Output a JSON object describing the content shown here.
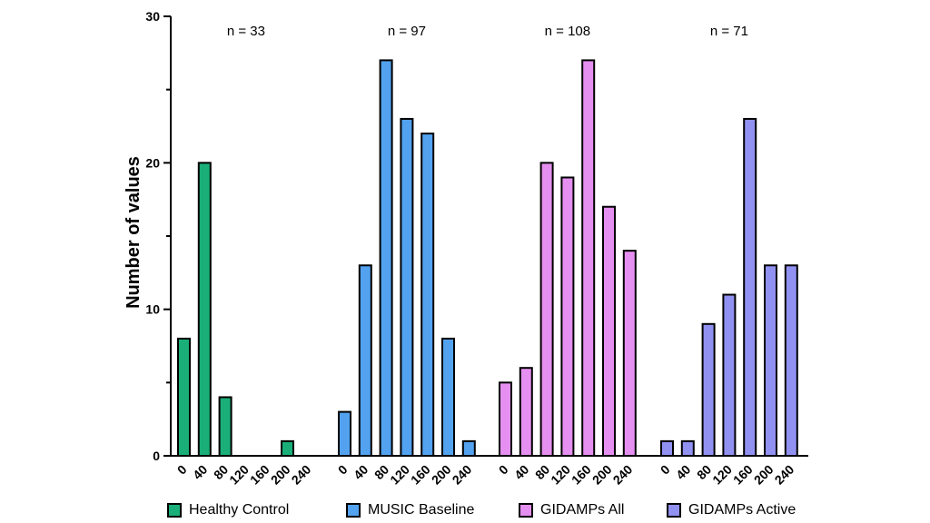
{
  "chart_data": {
    "type": "bar",
    "ylabel": "Number of values",
    "xlabel": "",
    "title": "",
    "ylim": [
      0,
      30
    ],
    "yticks": [
      0,
      10,
      20,
      30
    ],
    "grid": false,
    "legend_position": "bottom",
    "categories": [
      "0",
      "40",
      "80",
      "120",
      "160",
      "200",
      "240"
    ],
    "series": [
      {
        "name": "Healthy Control",
        "n_label": "n = 33",
        "color": "#1aaf78",
        "values": [
          8,
          20,
          4,
          0,
          0,
          1,
          0
        ]
      },
      {
        "name": "MUSIC Baseline",
        "n_label": "n = 97",
        "color": "#52a2ef",
        "values": [
          3,
          13,
          27,
          23,
          22,
          8,
          1
        ]
      },
      {
        "name": "GIDAMPs All",
        "n_label": "n = 108",
        "color": "#e58ff0",
        "values": [
          5,
          6,
          20,
          19,
          27,
          17,
          14
        ]
      },
      {
        "name": "GIDAMPs Active",
        "n_label": "n = 71",
        "color": "#9191f2",
        "values": [
          1,
          1,
          9,
          11,
          23,
          13,
          13
        ]
      }
    ]
  }
}
